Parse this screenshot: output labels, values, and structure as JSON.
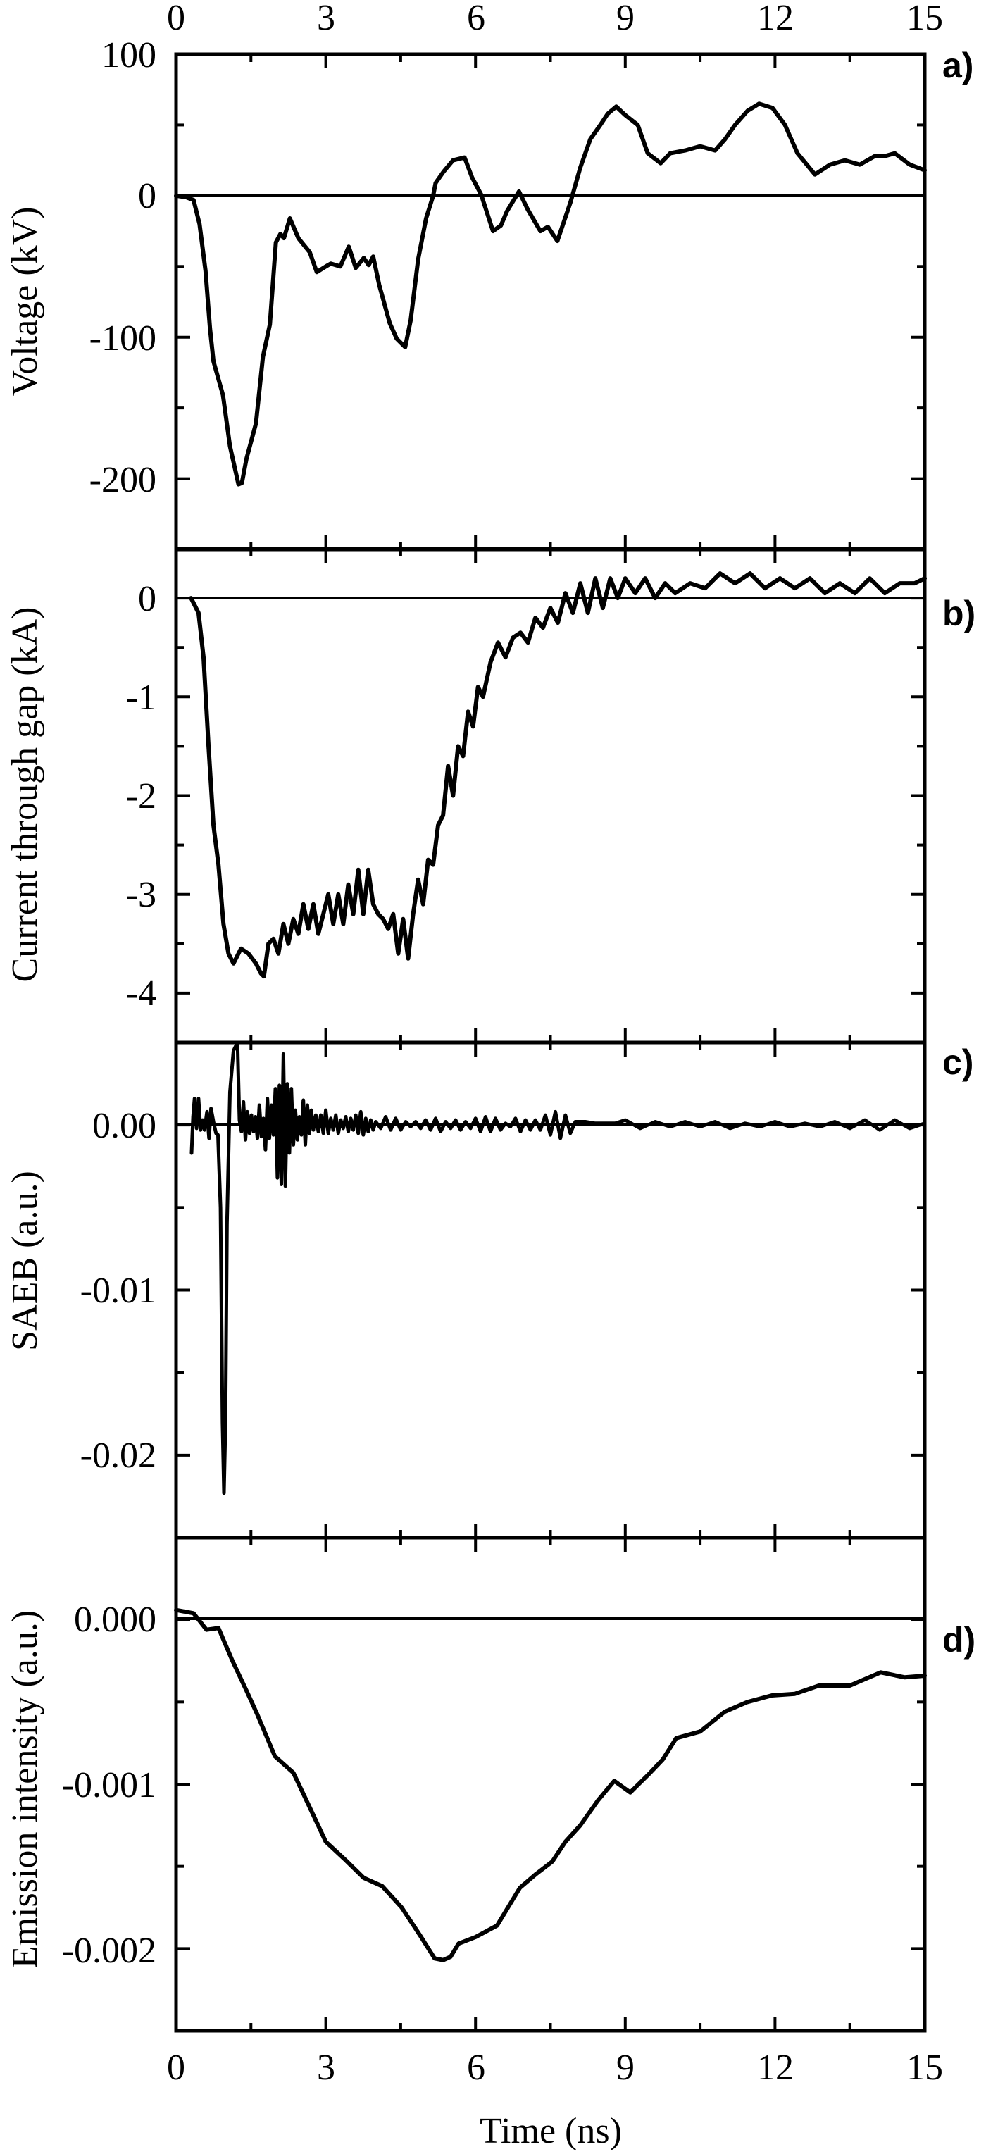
{
  "figure": {
    "x_axis_title": "Time (ns)",
    "x_ticks": [
      "0",
      "3",
      "6",
      "9",
      "12",
      "15"
    ]
  },
  "panels": [
    {
      "id": "a",
      "label": "a)",
      "ylabel": "Voltage (kV)",
      "yticks": [
        "100",
        "0",
        "-100",
        "-200"
      ]
    },
    {
      "id": "b",
      "label": "b)",
      "ylabel": "Current through gap (kA)",
      "yticks": [
        "0",
        "-1",
        "-2",
        "-3",
        "-4"
      ]
    },
    {
      "id": "c",
      "label": "c)",
      "ylabel": "SAEB (a.u.)",
      "yticks": [
        "0.00",
        "-0.01",
        "-0.02"
      ]
    },
    {
      "id": "d",
      "label": "d)",
      "ylabel": "Emission intensity (a.u.)",
      "yticks": [
        "0.000",
        "-0.001",
        "-0.002"
      ]
    }
  ],
  "chart_data": [
    {
      "type": "line",
      "title": "a)",
      "xlabel": "Time (ns)",
      "ylabel": "Voltage (kV)",
      "xlim": [
        0,
        15
      ],
      "ylim": [
        -250,
        100
      ],
      "x_ticks": [
        0,
        3,
        6,
        9,
        12,
        15
      ],
      "y_ticks": [
        100,
        0,
        -100,
        -200
      ],
      "zero_line": true,
      "series": [
        {
          "name": "Voltage",
          "x": [
            0,
            0.2,
            0.35,
            0.47,
            0.59,
            0.68,
            0.75,
            0.94,
            1.08,
            1.25,
            1.32,
            1.41,
            1.6,
            1.74,
            1.88,
            2.0,
            2.09,
            2.16,
            2.28,
            2.45,
            2.68,
            2.82,
            3.0,
            3.1,
            3.29,
            3.46,
            3.6,
            3.76,
            3.86,
            3.95,
            4.07,
            4.28,
            4.42,
            4.59,
            4.7,
            4.85,
            5.01,
            5.15,
            5.2,
            5.36,
            5.55,
            5.78,
            5.93,
            6.11,
            6.35,
            6.51,
            6.63,
            6.87,
            7.05,
            7.3,
            7.45,
            7.64,
            7.9,
            8.1,
            8.3,
            8.5,
            8.65,
            8.82,
            9.0,
            9.25,
            9.45,
            9.71,
            9.9,
            10.2,
            10.5,
            10.8,
            11.0,
            11.2,
            11.45,
            11.68,
            11.95,
            12.2,
            12.45,
            12.8,
            13.1,
            13.4,
            13.7,
            14.0,
            14.2,
            14.4,
            14.7,
            15.0
          ],
          "y": [
            0,
            -1,
            -3,
            -20,
            -53,
            -94,
            -117,
            -141,
            -177,
            -204,
            -203,
            -186,
            -161,
            -114,
            -91,
            -33,
            -27,
            -30,
            -16,
            -30,
            -40,
            -54,
            -50,
            -48,
            -50,
            -36,
            -51,
            -44,
            -49,
            -43,
            -63,
            -90,
            -101,
            -107,
            -88,
            -45,
            -16,
            0,
            9,
            17,
            25,
            27,
            13,
            1,
            -25,
            -21,
            -11,
            3,
            -10,
            -25,
            -22,
            -32,
            -5,
            20,
            40,
            50,
            58,
            63,
            57,
            50,
            30,
            23,
            30,
            32,
            35,
            32,
            40,
            50,
            60,
            65,
            62,
            50,
            30,
            15,
            22,
            25,
            22,
            28,
            28,
            30,
            22,
            18
          ]
        }
      ]
    },
    {
      "type": "line",
      "title": "b)",
      "xlabel": "Time (ns)",
      "ylabel": "Current through gap (kA)",
      "xlim": [
        0,
        15
      ],
      "ylim": [
        -4.5,
        0.5
      ],
      "x_ticks": [
        0,
        3,
        6,
        9,
        12,
        15
      ],
      "y_ticks": [
        0,
        -1,
        -2,
        -3,
        -4
      ],
      "zero_line": true,
      "series": [
        {
          "name": "Current",
          "x": [
            0.3,
            0.45,
            0.55,
            0.65,
            0.75,
            0.85,
            0.95,
            1.05,
            1.15,
            1.3,
            1.45,
            1.6,
            1.7,
            1.76,
            1.85,
            1.95,
            2.05,
            2.15,
            2.25,
            2.35,
            2.45,
            2.55,
            2.65,
            2.75,
            2.85,
            2.95,
            3.05,
            3.15,
            3.25,
            3.35,
            3.45,
            3.55,
            3.65,
            3.75,
            3.85,
            3.95,
            4.05,
            4.15,
            4.25,
            4.35,
            4.45,
            4.55,
            4.65,
            4.75,
            4.85,
            4.95,
            5.05,
            5.15,
            5.25,
            5.35,
            5.45,
            5.55,
            5.65,
            5.75,
            5.85,
            5.95,
            6.05,
            6.15,
            6.3,
            6.45,
            6.6,
            6.75,
            6.9,
            7.05,
            7.2,
            7.35,
            7.5,
            7.65,
            7.8,
            7.95,
            8.1,
            8.25,
            8.4,
            8.55,
            8.7,
            8.85,
            9.0,
            9.2,
            9.4,
            9.6,
            9.8,
            10.0,
            10.3,
            10.6,
            10.9,
            11.2,
            11.5,
            11.8,
            12.1,
            12.4,
            12.7,
            13.0,
            13.3,
            13.6,
            13.9,
            14.2,
            14.5,
            14.8,
            15.0
          ],
          "y": [
            0.0,
            -0.15,
            -0.6,
            -1.5,
            -2.3,
            -2.7,
            -3.3,
            -3.6,
            -3.7,
            -3.55,
            -3.6,
            -3.7,
            -3.8,
            -3.83,
            -3.5,
            -3.45,
            -3.6,
            -3.3,
            -3.5,
            -3.25,
            -3.4,
            -3.1,
            -3.35,
            -3.1,
            -3.4,
            -3.2,
            -3.0,
            -3.3,
            -3.0,
            -3.3,
            -2.9,
            -3.2,
            -2.75,
            -3.2,
            -2.75,
            -3.1,
            -3.2,
            -3.25,
            -3.35,
            -3.2,
            -3.6,
            -3.25,
            -3.65,
            -3.2,
            -2.85,
            -3.1,
            -2.65,
            -2.7,
            -2.3,
            -2.2,
            -1.7,
            -2.0,
            -1.5,
            -1.6,
            -1.15,
            -1.3,
            -0.9,
            -1.0,
            -0.65,
            -0.45,
            -0.6,
            -0.4,
            -0.35,
            -0.45,
            -0.2,
            -0.3,
            -0.1,
            -0.25,
            0.05,
            -0.15,
            0.15,
            -0.15,
            0.2,
            -0.1,
            0.2,
            0.0,
            0.2,
            0.05,
            0.2,
            0.0,
            0.15,
            0.05,
            0.15,
            0.1,
            0.25,
            0.15,
            0.25,
            0.1,
            0.2,
            0.1,
            0.2,
            0.05,
            0.15,
            0.05,
            0.2,
            0.05,
            0.15,
            0.15,
            0.2
          ]
        }
      ]
    },
    {
      "type": "line",
      "title": "c)",
      "xlabel": "Time (ns)",
      "ylabel": "SAEB (a.u.)",
      "xlim": [
        0,
        15
      ],
      "ylim": [
        -0.025,
        0.005
      ],
      "x_ticks": [
        0,
        3,
        6,
        9,
        12,
        15
      ],
      "y_ticks": [
        0.0,
        -0.01,
        -0.02
      ],
      "zero_line": true,
      "series": [
        {
          "name": "SAEB",
          "x": [
            0.31,
            0.34,
            0.37,
            0.41,
            0.45,
            0.49,
            0.53,
            0.57,
            0.62,
            0.66,
            0.7,
            0.75,
            0.8,
            0.84,
            0.89,
            0.93,
            0.96,
            0.99,
            1.02,
            1.08,
            1.15,
            1.23,
            1.27,
            1.31,
            1.35,
            1.39,
            1.43,
            1.47,
            1.51,
            1.55,
            1.59,
            1.63,
            1.67,
            1.71,
            1.75,
            1.79,
            1.83,
            1.87,
            1.91,
            1.95,
            1.99,
            2.03,
            2.07,
            2.11,
            2.15,
            2.19,
            2.23,
            2.27,
            2.31,
            2.35,
            2.39,
            2.43,
            2.47,
            2.51,
            2.55,
            2.59,
            2.63,
            2.67,
            2.71,
            2.75,
            2.8,
            2.85,
            2.9,
            2.95,
            3.0,
            3.05,
            3.1,
            3.15,
            3.2,
            3.25,
            3.3,
            3.35,
            3.4,
            3.45,
            3.5,
            3.55,
            3.6,
            3.65,
            3.7,
            3.75,
            3.8,
            3.85,
            3.9,
            3.95,
            4.0,
            4.1,
            4.2,
            4.3,
            4.4,
            4.5,
            4.6,
            4.7,
            4.8,
            4.9,
            5.0,
            5.1,
            5.2,
            5.3,
            5.4,
            5.5,
            5.6,
            5.7,
            5.8,
            5.9,
            6.0,
            6.1,
            6.2,
            6.3,
            6.4,
            6.5,
            6.6,
            6.7,
            6.8,
            6.9,
            7.0,
            7.1,
            7.2,
            7.3,
            7.4,
            7.5,
            7.6,
            7.7,
            7.8,
            7.9,
            8.0,
            8.2,
            8.4,
            8.6,
            8.8,
            9.0,
            9.3,
            9.6,
            9.9,
            10.2,
            10.5,
            10.8,
            11.1,
            11.4,
            11.7,
            12.0,
            12.3,
            12.6,
            12.9,
            13.2,
            13.5,
            13.8,
            14.1,
            14.4,
            14.7,
            15.0
          ],
          "y": [
            -0.0017,
            0.0005,
            0.0016,
            -0.0002,
            0.0016,
            -0.0003,
            0.0003,
            -0.0003,
            0.0008,
            -0.0008,
            0.001,
            0.0002,
            -0.0005,
            -0.0006,
            -0.005,
            -0.018,
            -0.0223,
            -0.018,
            -0.006,
            0.002,
            0.0045,
            0.005,
            0.0003,
            -0.0004,
            0.0014,
            -0.0009,
            0.0008,
            -0.0005,
            0.0006,
            -0.0004,
            0.0005,
            -0.0008,
            0.0012,
            -0.0007,
            0.0004,
            -0.0015,
            0.0016,
            -0.0008,
            0.0012,
            -0.0006,
            0.0022,
            -0.0032,
            0.0024,
            -0.0036,
            0.0043,
            -0.0037,
            0.0025,
            -0.0017,
            0.0022,
            -0.0012,
            0.0009,
            -0.0009,
            0.0005,
            -0.0006,
            0.0015,
            -0.0012,
            0.0012,
            -0.0005,
            0.0009,
            -0.0003,
            0.0006,
            -0.0004,
            0.0006,
            -0.0005,
            0.0009,
            -0.0005,
            0.0004,
            -0.0003,
            0.0006,
            -0.0005,
            0.0003,
            -0.0002,
            0.0005,
            -0.0004,
            0.0004,
            -0.0003,
            0.0006,
            -0.0005,
            0.0008,
            -0.0006,
            0.0004,
            -0.0004,
            0.0003,
            -0.0003,
            0.0002,
            -0.0002,
            0.0005,
            -0.0003,
            0.0004,
            -0.0003,
            0.0002,
            -0.0001,
            0.0002,
            -0.0002,
            0.0003,
            -0.0003,
            0.0004,
            -0.0004,
            0.0002,
            -0.0002,
            0.0003,
            -0.0003,
            0.0002,
            -0.0002,
            0.0004,
            -0.0004,
            0.0005,
            -0.0004,
            0.0004,
            -0.0003,
            0.0001,
            -0.0001,
            0.0004,
            -0.0004,
            0.0003,
            -0.0003,
            0.0003,
            -0.0003,
            0.0006,
            -0.0006,
            0.0008,
            -0.0008,
            0.0006,
            -0.0005,
            0.0002,
            0.0002,
            0.0001,
            0.0001,
            0.0001,
            0.0003,
            -0.0002,
            0.0002,
            -0.0001,
            0.0002,
            -0.0001,
            0.0002,
            -0.0002,
            0.0001,
            -0.0001,
            0.0002,
            -0.0001,
            0.0001,
            -0.0001,
            0.0002,
            -0.0002,
            0.0003,
            -0.0003,
            0.0003,
            -0.0002,
            0.0001
          ]
        }
      ]
    },
    {
      "type": "line",
      "title": "d)",
      "xlabel": "Time (ns)",
      "ylabel": "Emission intensity (a.u.)",
      "xlim": [
        0,
        15
      ],
      "ylim": [
        -0.0025,
        0.0005
      ],
      "x_ticks": [
        0,
        3,
        6,
        9,
        12,
        15
      ],
      "y_ticks": [
        0.0,
        -0.001,
        -0.002
      ],
      "zero_line": true,
      "series": [
        {
          "name": "Emission intensity",
          "x": [
            0,
            0.35,
            0.61,
            0.85,
            1.13,
            1.41,
            1.62,
            1.98,
            2.35,
            2.63,
            3.0,
            3.39,
            3.76,
            4.13,
            4.52,
            4.89,
            5.18,
            5.35,
            5.5,
            5.66,
            6.0,
            6.43,
            6.89,
            7.2,
            7.54,
            7.8,
            8.1,
            8.45,
            8.78,
            9.1,
            9.5,
            9.75,
            10.02,
            10.5,
            10.99,
            11.45,
            11.94,
            12.4,
            12.88,
            13.5,
            14.12,
            14.6,
            15.0
          ],
          "y": [
            6e-05,
            4e-05,
            -6e-05,
            -5e-05,
            -0.00025,
            -0.00043,
            -0.00057,
            -0.00083,
            -0.00093,
            -0.00111,
            -0.00135,
            -0.00146,
            -0.00157,
            -0.00162,
            -0.00175,
            -0.00192,
            -0.00206,
            -0.00207,
            -0.00205,
            -0.00197,
            -0.00193,
            -0.00186,
            -0.00163,
            -0.00155,
            -0.00147,
            -0.00135,
            -0.00125,
            -0.0011,
            -0.00098,
            -0.00105,
            -0.00093,
            -0.00085,
            -0.00072,
            -0.00068,
            -0.00056,
            -0.0005,
            -0.00046,
            -0.00045,
            -0.0004,
            -0.0004,
            -0.00032,
            -0.00035,
            -0.00034
          ]
        }
      ]
    }
  ]
}
